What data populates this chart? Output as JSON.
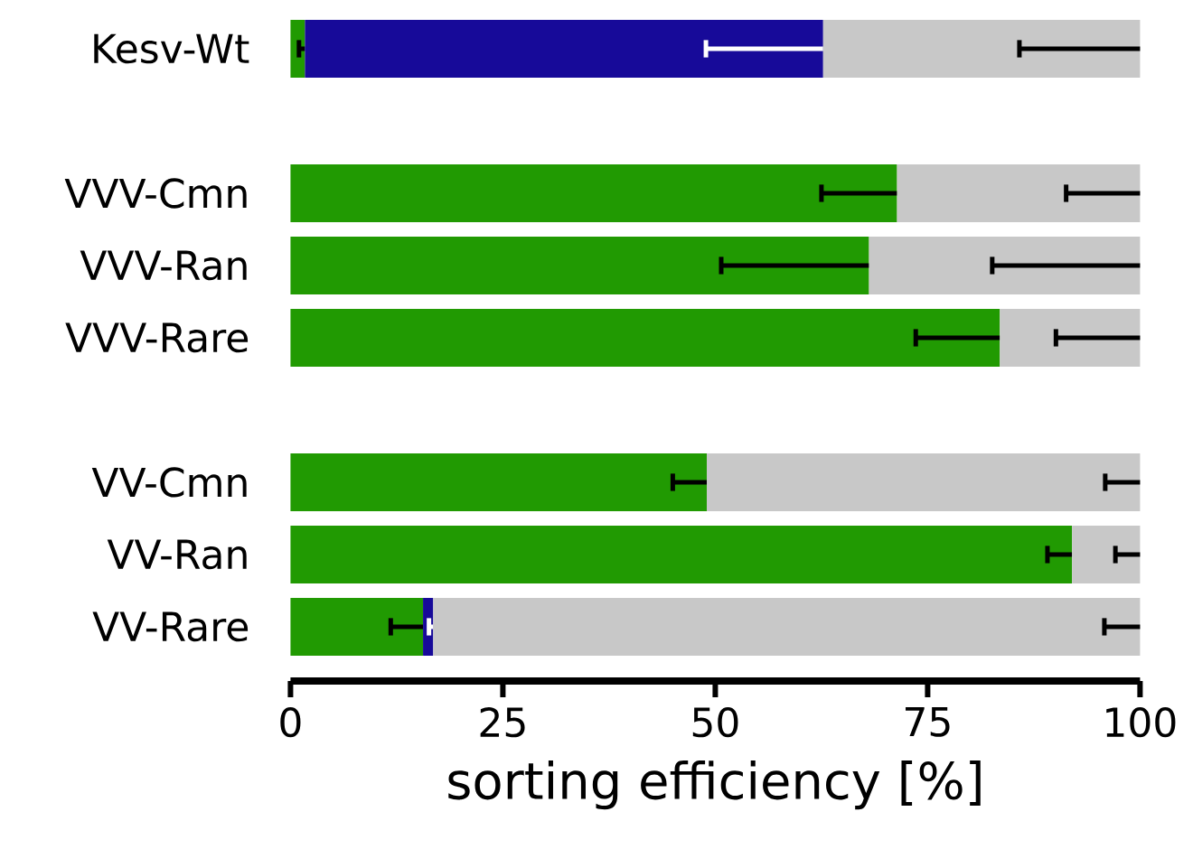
{
  "chart_data": {
    "type": "bar",
    "orientation": "horizontal",
    "stacked": true,
    "categories": [
      "Kesv-Wt",
      null,
      "VVV-Cmn",
      "VVV-Ran",
      "VVV-Rare",
      null,
      "VV-Cmn",
      "VV-Ran",
      "VV-Rare"
    ],
    "xlabel": "sorting efficiency [%]",
    "xlim": [
      0,
      100
    ],
    "xticks": [
      0,
      25,
      50,
      75,
      100
    ],
    "series": [
      {
        "color": "#219a02",
        "values": [
          1.7,
          null,
          71.4,
          68.1,
          83.5,
          null,
          49.0,
          92.0,
          15.6
        ],
        "errors": [
          [
            1.0,
            1.7
          ],
          null,
          [
            62.5,
            71.4
          ],
          [
            50.7,
            68.1
          ],
          [
            73.6,
            83.5
          ],
          null,
          [
            45.0,
            49.0
          ],
          [
            89.1,
            92.0
          ],
          [
            11.8,
            15.6
          ]
        ]
      },
      {
        "color": "#170a99",
        "values": [
          61.0,
          null,
          null,
          null,
          null,
          null,
          null,
          null,
          1.2
        ],
        "errors": [
          [
            48.9,
            62.7
          ],
          null,
          null,
          null,
          null,
          null,
          null,
          null,
          [
            16.3,
            16.8
          ]
        ]
      },
      {
        "color": "#c8c8c8",
        "values": [
          37.3,
          null,
          28.6,
          31.9,
          16.5,
          null,
          51.0,
          8.0,
          83.2
        ],
        "errors": [
          [
            85.8,
            100
          ],
          null,
          [
            91.3,
            100
          ],
          [
            82.6,
            100
          ],
          [
            90.1,
            100
          ],
          null,
          [
            95.9,
            100
          ],
          [
            97.1,
            100
          ],
          [
            95.8,
            100
          ]
        ]
      }
    ]
  }
}
